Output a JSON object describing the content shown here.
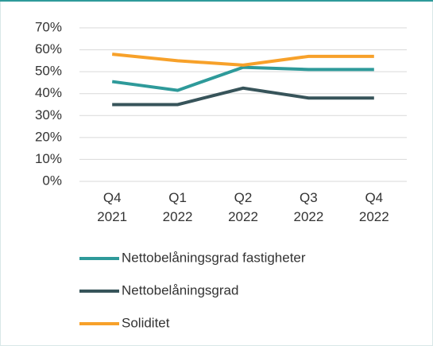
{
  "chart_data": {
    "type": "line",
    "categories": [
      "Q4 2021",
      "Q1 2022",
      "Q2 2022",
      "Q3 2022",
      "Q4 2022"
    ],
    "series": [
      {
        "name": "Nettobelåningsgrad fastigheter",
        "color": "#2e9a9a",
        "values": [
          45.5,
          41.5,
          52,
          51,
          51
        ]
      },
      {
        "name": "Nettobelåningsgrad",
        "color": "#37545a",
        "values": [
          35,
          35,
          42.5,
          38,
          38
        ]
      },
      {
        "name": "Soliditet",
        "color": "#f7a12a",
        "values": [
          58,
          55,
          53,
          57,
          57
        ]
      }
    ],
    "ylim": [
      0,
      70
    ],
    "yticks": [
      {
        "value": 0,
        "label": "0%"
      },
      {
        "value": 10,
        "label": "10%"
      },
      {
        "value": 20,
        "label": "20%"
      },
      {
        "value": 30,
        "label": "30%"
      },
      {
        "value": 40,
        "label": "40%"
      },
      {
        "value": 50,
        "label": "50%"
      },
      {
        "value": 60,
        "label": "60%"
      },
      {
        "value": 70,
        "label": "70%"
      }
    ],
    "grid": true,
    "legend": "bottom"
  }
}
